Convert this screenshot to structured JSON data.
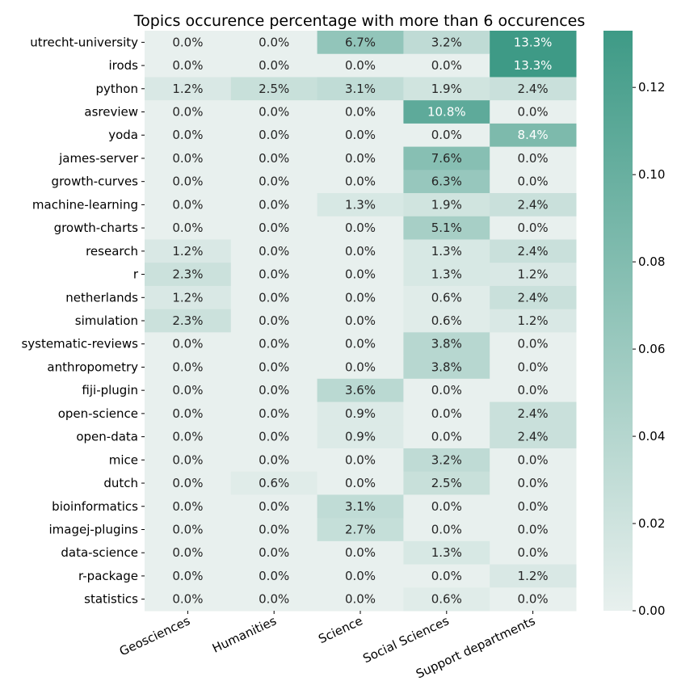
{
  "chart_data": {
    "type": "heatmap",
    "title": "Topics occurence percentage with more than 6 occurences",
    "columns": [
      "Geosciences",
      "Humanities",
      "Science",
      "Social Sciences",
      "Support departments"
    ],
    "rows": [
      "utrecht-university",
      "irods",
      "python",
      "asreview",
      "yoda",
      "james-server",
      "growth-curves",
      "machine-learning",
      "growth-charts",
      "research",
      "r",
      "netherlands",
      "simulation",
      "systematic-reviews",
      "anthropometry",
      "fiji-plugin",
      "open-science",
      "open-data",
      "mice",
      "dutch",
      "bioinformatics",
      "imagej-plugins",
      "data-science",
      "r-package",
      "statistics"
    ],
    "values": [
      [
        0.0,
        0.0,
        0.067,
        0.032,
        0.133
      ],
      [
        0.0,
        0.0,
        0.0,
        0.0,
        0.133
      ],
      [
        0.012,
        0.025,
        0.031,
        0.019,
        0.024
      ],
      [
        0.0,
        0.0,
        0.0,
        0.108,
        0.0
      ],
      [
        0.0,
        0.0,
        0.0,
        0.0,
        0.084
      ],
      [
        0.0,
        0.0,
        0.0,
        0.076,
        0.0
      ],
      [
        0.0,
        0.0,
        0.0,
        0.063,
        0.0
      ],
      [
        0.0,
        0.0,
        0.013,
        0.019,
        0.024
      ],
      [
        0.0,
        0.0,
        0.0,
        0.051,
        0.0
      ],
      [
        0.012,
        0.0,
        0.0,
        0.013,
        0.024
      ],
      [
        0.023,
        0.0,
        0.0,
        0.013,
        0.012
      ],
      [
        0.012,
        0.0,
        0.0,
        0.006,
        0.024
      ],
      [
        0.023,
        0.0,
        0.0,
        0.006,
        0.012
      ],
      [
        0.0,
        0.0,
        0.0,
        0.038,
        0.0
      ],
      [
        0.0,
        0.0,
        0.0,
        0.038,
        0.0
      ],
      [
        0.0,
        0.0,
        0.036,
        0.0,
        0.0
      ],
      [
        0.0,
        0.0,
        0.009,
        0.0,
        0.024
      ],
      [
        0.0,
        0.0,
        0.009,
        0.0,
        0.024
      ],
      [
        0.0,
        0.0,
        0.0,
        0.032,
        0.0
      ],
      [
        0.0,
        0.006,
        0.0,
        0.025,
        0.0
      ],
      [
        0.0,
        0.0,
        0.031,
        0.0,
        0.0
      ],
      [
        0.0,
        0.0,
        0.027,
        0.0,
        0.0
      ],
      [
        0.0,
        0.0,
        0.0,
        0.013,
        0.0
      ],
      [
        0.0,
        0.0,
        0.0,
        0.0,
        0.012
      ],
      [
        0.0,
        0.0,
        0.0,
        0.006,
        0.0
      ]
    ],
    "cell_labels": [
      [
        "0.0%",
        "0.0%",
        "6.7%",
        "3.2%",
        "13.3%"
      ],
      [
        "0.0%",
        "0.0%",
        "0.0%",
        "0.0%",
        "13.3%"
      ],
      [
        "1.2%",
        "2.5%",
        "3.1%",
        "1.9%",
        "2.4%"
      ],
      [
        "0.0%",
        "0.0%",
        "0.0%",
        "10.8%",
        "0.0%"
      ],
      [
        "0.0%",
        "0.0%",
        "0.0%",
        "0.0%",
        "8.4%"
      ],
      [
        "0.0%",
        "0.0%",
        "0.0%",
        "7.6%",
        "0.0%"
      ],
      [
        "0.0%",
        "0.0%",
        "0.0%",
        "6.3%",
        "0.0%"
      ],
      [
        "0.0%",
        "0.0%",
        "1.3%",
        "1.9%",
        "2.4%"
      ],
      [
        "0.0%",
        "0.0%",
        "0.0%",
        "5.1%",
        "0.0%"
      ],
      [
        "1.2%",
        "0.0%",
        "0.0%",
        "1.3%",
        "2.4%"
      ],
      [
        "2.3%",
        "0.0%",
        "0.0%",
        "1.3%",
        "1.2%"
      ],
      [
        "1.2%",
        "0.0%",
        "0.0%",
        "0.6%",
        "2.4%"
      ],
      [
        "2.3%",
        "0.0%",
        "0.0%",
        "0.6%",
        "1.2%"
      ],
      [
        "0.0%",
        "0.0%",
        "0.0%",
        "3.8%",
        "0.0%"
      ],
      [
        "0.0%",
        "0.0%",
        "0.0%",
        "3.8%",
        "0.0%"
      ],
      [
        "0.0%",
        "0.0%",
        "3.6%",
        "0.0%",
        "0.0%"
      ],
      [
        "0.0%",
        "0.0%",
        "0.9%",
        "0.0%",
        "2.4%"
      ],
      [
        "0.0%",
        "0.0%",
        "0.9%",
        "0.0%",
        "2.4%"
      ],
      [
        "0.0%",
        "0.0%",
        "0.0%",
        "3.2%",
        "0.0%"
      ],
      [
        "0.0%",
        "0.6%",
        "0.0%",
        "2.5%",
        "0.0%"
      ],
      [
        "0.0%",
        "0.0%",
        "3.1%",
        "0.0%",
        "0.0%"
      ],
      [
        "0.0%",
        "0.0%",
        "2.7%",
        "0.0%",
        "0.0%"
      ],
      [
        "0.0%",
        "0.0%",
        "0.0%",
        "1.3%",
        "0.0%"
      ],
      [
        "0.0%",
        "0.0%",
        "0.0%",
        "0.0%",
        "1.2%"
      ],
      [
        "0.0%",
        "0.0%",
        "0.0%",
        "0.6%",
        "0.0%"
      ]
    ],
    "colorbar": {
      "min": 0.0,
      "max": 0.133,
      "ticks": [
        "0.00",
        "0.02",
        "0.04",
        "0.06",
        "0.08",
        "0.10",
        "0.12"
      ]
    },
    "colors": {
      "low": "#e8f0ee",
      "high": "#3e9a86",
      "text_dark": "#262626",
      "text_light": "#ffffff"
    },
    "xlabel": "",
    "ylabel": "",
    "grid": false,
    "legend": "right (colorbar)"
  }
}
